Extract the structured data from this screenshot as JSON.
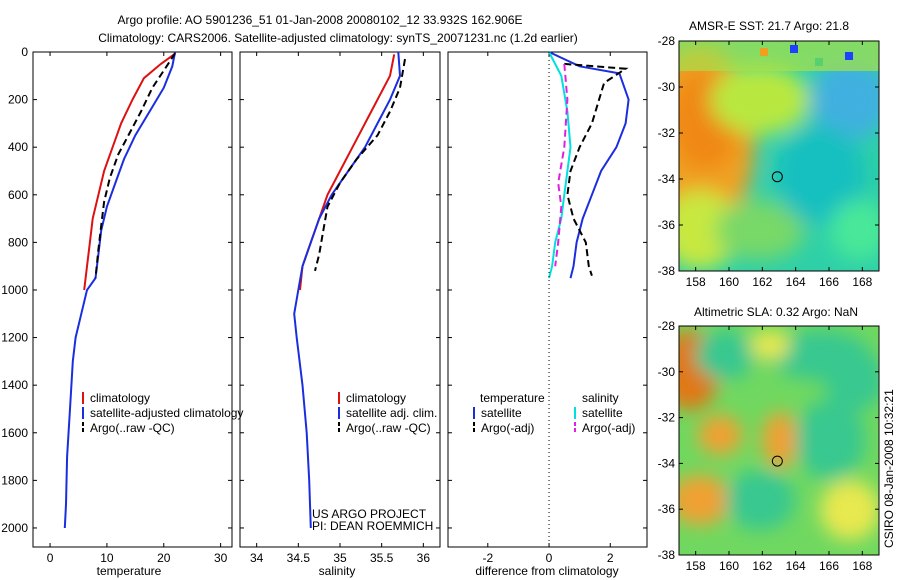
{
  "header": {
    "line1": "Argo profile: AO 5901236_51 01-Jan-2008 20080102_12 33.932S 162.906E",
    "line2": "Climatology: CARS2006. Satellite-adjusted climatology: synTS_20071231.nc (1.2d earlier)"
  },
  "colors": {
    "climatology": "#dd1111",
    "satellite": "#1a2ee0",
    "argo": "#000000",
    "satellite_salinity": "#00e0e0",
    "argo_adj_salinity": "#e020e0"
  },
  "chart_data": [
    {
      "type": "line",
      "xlabel": "temperature",
      "xlim": [
        -3,
        32
      ],
      "ylim": [
        2080,
        0
      ],
      "xticks": [
        0,
        10,
        20,
        30
      ],
      "yticks": [
        0,
        200,
        400,
        600,
        800,
        1000,
        1200,
        1400,
        1600,
        1800,
        2000
      ],
      "legend": [
        "climatology",
        "satellite-adjusted climatology",
        "Argo(..raw -QC)"
      ],
      "series": [
        {
          "name": "climatology",
          "style": "red",
          "points": [
            [
              21.8,
              10
            ],
            [
              19.5,
              50
            ],
            [
              16.5,
              110
            ],
            [
              14.5,
              200
            ],
            [
              12.5,
              300
            ],
            [
              11.0,
              400
            ],
            [
              9.5,
              500
            ],
            [
              8.5,
              600
            ],
            [
              7.5,
              700
            ],
            [
              7.0,
              800
            ],
            [
              6.5,
              900
            ],
            [
              6.0,
              1000
            ]
          ]
        },
        {
          "name": "satellite-adjusted climatology",
          "style": "blue",
          "points": [
            [
              22.0,
              0
            ],
            [
              21.5,
              60
            ],
            [
              20.0,
              150
            ],
            [
              17.5,
              250
            ],
            [
              15.0,
              350
            ],
            [
              13.0,
              450
            ],
            [
              11.5,
              550
            ],
            [
              10.0,
              650
            ],
            [
              9.0,
              750
            ],
            [
              8.5,
              850
            ],
            [
              8.0,
              950
            ],
            [
              6.5,
              1000
            ],
            [
              5.5,
              1100
            ],
            [
              4.5,
              1200
            ],
            [
              4.0,
              1300
            ],
            [
              3.5,
              1500
            ],
            [
              3.0,
              1700
            ],
            [
              2.8,
              1900
            ],
            [
              2.6,
              2000
            ]
          ]
        },
        {
          "name": "Argo(..raw -QC)",
          "style": "black-dashed",
          "points": [
            [
              22.0,
              5
            ],
            [
              20.5,
              60
            ],
            [
              18.0,
              150
            ],
            [
              16.0,
              250
            ],
            [
              14.0,
              340
            ],
            [
              12.0,
              430
            ],
            [
              10.5,
              530
            ],
            [
              9.5,
              630
            ],
            [
              9.0,
              730
            ],
            [
              8.5,
              830
            ],
            [
              8.0,
              950
            ]
          ]
        }
      ]
    },
    {
      "type": "line",
      "xlabel": "salinity",
      "xlim": [
        33.8,
        36.2
      ],
      "ylim": [
        2080,
        0
      ],
      "xticks": [
        34,
        34.5,
        35,
        35.5,
        36
      ],
      "legend": [
        "climatology",
        "satellite adj. clim.",
        "Argo(..raw -QC)"
      ],
      "annotations": [
        "US ARGO PROJECT",
        "PI: DEAN ROEMMICH"
      ],
      "series": [
        {
          "name": "climatology",
          "style": "red",
          "points": [
            [
              35.65,
              10
            ],
            [
              35.6,
              100
            ],
            [
              35.45,
              200
            ],
            [
              35.3,
              300
            ],
            [
              35.15,
              400
            ],
            [
              35.0,
              500
            ],
            [
              34.85,
              600
            ],
            [
              34.75,
              700
            ],
            [
              34.65,
              800
            ],
            [
              34.55,
              900
            ],
            [
              34.52,
              1000
            ]
          ]
        },
        {
          "name": "satellite adj. clim.",
          "style": "blue",
          "points": [
            [
              35.7,
              0
            ],
            [
              35.72,
              100
            ],
            [
              35.6,
              200
            ],
            [
              35.45,
              300
            ],
            [
              35.3,
              400
            ],
            [
              35.1,
              500
            ],
            [
              34.9,
              600
            ],
            [
              34.75,
              700
            ],
            [
              34.65,
              800
            ],
            [
              34.55,
              900
            ],
            [
              34.5,
              1000
            ],
            [
              34.45,
              1100
            ],
            [
              34.48,
              1200
            ],
            [
              34.55,
              1400
            ],
            [
              34.6,
              1600
            ],
            [
              34.63,
              1800
            ],
            [
              34.65,
              2000
            ]
          ]
        },
        {
          "name": "Argo(..raw -QC)",
          "style": "black-dashed",
          "points": [
            [
              35.78,
              30
            ],
            [
              35.72,
              150
            ],
            [
              35.6,
              250
            ],
            [
              35.45,
              350
            ],
            [
              35.2,
              450
            ],
            [
              35.0,
              550
            ],
            [
              34.85,
              650
            ],
            [
              34.8,
              750
            ],
            [
              34.75,
              850
            ],
            [
              34.7,
              920
            ]
          ]
        }
      ]
    },
    {
      "type": "line",
      "xlabel": "difference from climatology",
      "xlim": [
        -3.3,
        3.2
      ],
      "ylim": [
        2080,
        0
      ],
      "xticks": [
        -2,
        0,
        2
      ],
      "legend": [
        "temperature",
        "satellite",
        "Argo(-adj)",
        "salinity",
        "satellite",
        "Argo(-adj)"
      ],
      "series": [
        {
          "name": "satellite",
          "style": "blue",
          "points": [
            [
              0.0,
              0
            ],
            [
              1.0,
              60
            ],
            [
              2.3,
              90
            ],
            [
              2.6,
              200
            ],
            [
              2.5,
              300
            ],
            [
              2.2,
              400
            ],
            [
              1.7,
              500
            ],
            [
              1.4,
              600
            ],
            [
              1.1,
              700
            ],
            [
              0.9,
              800
            ],
            [
              0.8,
              900
            ],
            [
              0.7,
              950
            ]
          ]
        },
        {
          "name": "Argo(-adj)",
          "style": "black-dashed",
          "points": [
            [
              0.5,
              50
            ],
            [
              2.5,
              70
            ],
            [
              1.8,
              130
            ],
            [
              1.4,
              300
            ],
            [
              1.0,
              400
            ],
            [
              0.7,
              500
            ],
            [
              0.6,
              600
            ],
            [
              0.8,
              700
            ],
            [
              1.2,
              800
            ],
            [
              1.3,
              900
            ],
            [
              1.4,
              940
            ]
          ]
        },
        {
          "name": "satellite",
          "style": "cyan",
          "points": [
            [
              0.0,
              0
            ],
            [
              0.4,
              100
            ],
            [
              0.6,
              250
            ],
            [
              0.7,
              400
            ],
            [
              0.6,
              500
            ],
            [
              0.5,
              600
            ],
            [
              0.4,
              700
            ],
            [
              0.2,
              800
            ],
            [
              0.1,
              900
            ],
            [
              0.0,
              950
            ]
          ]
        },
        {
          "name": "Argo(-adj)",
          "style": "magenta-dashed",
          "points": [
            [
              0.5,
              50
            ],
            [
              0.6,
              200
            ],
            [
              0.5,
              400
            ],
            [
              0.3,
              550
            ],
            [
              0.4,
              650
            ],
            [
              0.3,
              800
            ],
            [
              0.2,
              900
            ]
          ]
        }
      ]
    },
    {
      "type": "heatmap",
      "title": "AMSR-E SST: 21.7 Argo: 21.8",
      "xlim": [
        157,
        169
      ],
      "ylim": [
        -38,
        -28
      ],
      "xticks": [
        158,
        160,
        162,
        164,
        166,
        168
      ],
      "yticks": [
        -28,
        -30,
        -32,
        -34,
        -36,
        -38
      ],
      "marker": [
        162.9,
        -33.9
      ]
    },
    {
      "type": "heatmap",
      "title": "Altimetric SLA: 0.32 Argo: NaN",
      "xlim": [
        157,
        169
      ],
      "ylim": [
        -38,
        -28
      ],
      "xticks": [
        158,
        160,
        162,
        164,
        166,
        168
      ],
      "yticks": [
        -28,
        -30,
        -32,
        -34,
        -36,
        -38
      ],
      "marker": [
        162.9,
        -33.9
      ]
    }
  ],
  "side_label": "CSIRO 08-Jan-2008 10:32:21"
}
